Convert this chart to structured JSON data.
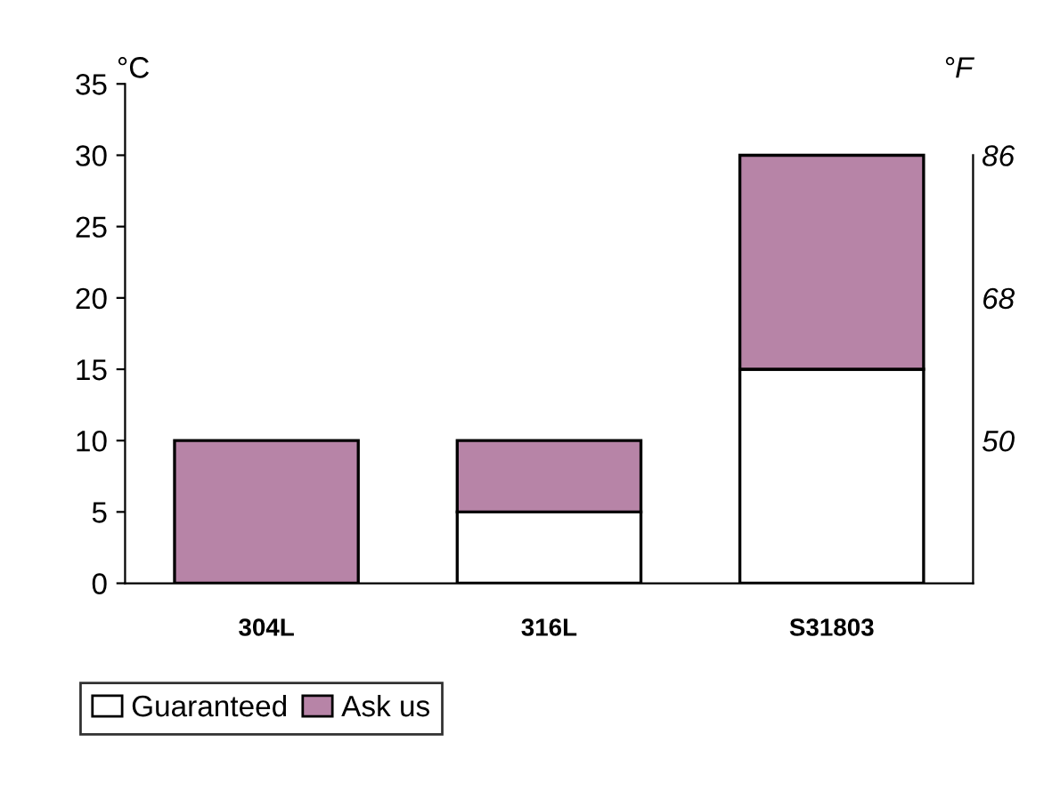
{
  "chart_data": {
    "type": "bar",
    "stacked": true,
    "categories": [
      "304L",
      "316L",
      "S31803"
    ],
    "series": [
      {
        "name": "Guaranteed",
        "color": "#ffffff",
        "values": [
          0,
          5,
          15
        ]
      },
      {
        "name": "Ask us",
        "color": "#b784a7",
        "values": [
          10,
          5,
          15
        ]
      }
    ],
    "ylim": [
      0,
      35
    ],
    "yticks": [
      0,
      5,
      10,
      15,
      20,
      25,
      30,
      35
    ],
    "ylabel": "°C",
    "y2label": "°F",
    "y2lim": [
      32,
      95
    ],
    "y2ticks": [
      50,
      68,
      86
    ],
    "grid": false,
    "legend": "bottom left"
  }
}
